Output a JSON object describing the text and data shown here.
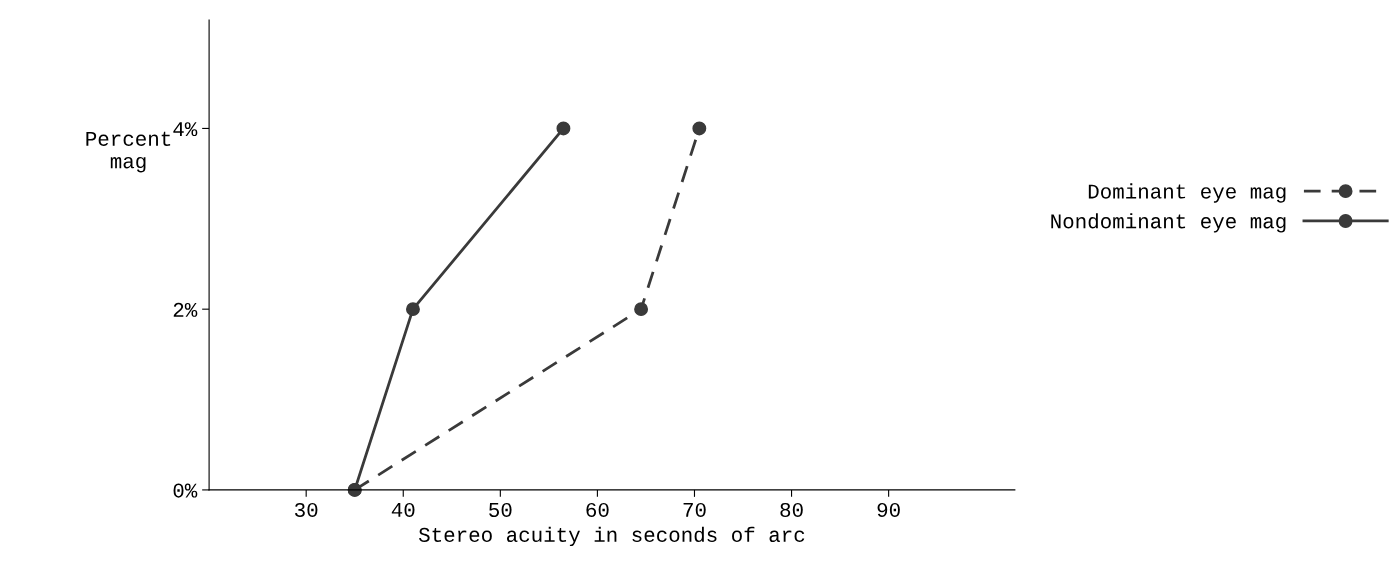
{
  "chart_data": {
    "type": "line",
    "xlabel": "Stereo acuity in seconds of arc",
    "ylabel": "Percent\nmag",
    "series": [
      {
        "name": "Dominant eye mag",
        "color": "#3a3a3a",
        "line_style": "dashed",
        "x": [
          35,
          64.5,
          70.5
        ],
        "values": [
          0,
          2,
          4
        ]
      },
      {
        "name": "Nondominant eye mag",
        "color": "#3a3a3a",
        "line_style": "solid",
        "x": [
          35,
          41,
          56.5
        ],
        "values": [
          0,
          2,
          4
        ]
      }
    ],
    "marker": "circle",
    "legend": "right",
    "xlim": [
      20,
      103
    ],
    "xticks": [
      30,
      40,
      50,
      60,
      70,
      80,
      90
    ],
    "ylim": [
      0,
      5.2
    ],
    "yticks": [
      {
        "value": 0,
        "label": "0%"
      },
      {
        "value": 2,
        "label": "2%"
      },
      {
        "value": 4,
        "label": "4%"
      }
    ],
    "grid": false
  }
}
